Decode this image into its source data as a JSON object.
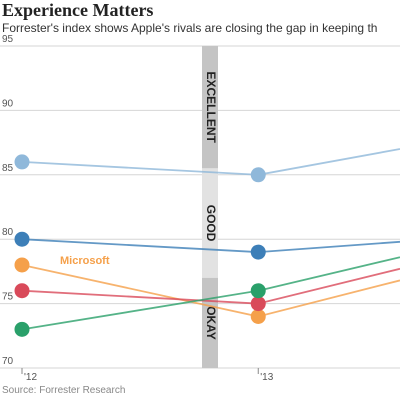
{
  "header": {
    "title": "Experience Matters",
    "subtitle": "Forrester's index shows Apple's rivals are closing the gap in keeping th"
  },
  "source": "Source: Forrester Research",
  "chart_data": {
    "type": "line",
    "title": "Experience Matters",
    "xlabel": "",
    "ylabel": "",
    "x_tick_labels": [
      "'12",
      "'13"
    ],
    "x": [
      2012,
      2013,
      2013.6
    ],
    "ylim": [
      70,
      95
    ],
    "y_ticks": [
      70,
      75,
      80,
      85,
      90,
      95
    ],
    "grid": true,
    "bands": [
      {
        "label": "EXCELLENT",
        "from": 85.5,
        "to": 95
      },
      {
        "label": "GOOD",
        "from": 77,
        "to": 85.5
      },
      {
        "label": "OKAY",
        "from": 70,
        "to": 77
      }
    ],
    "series": [
      {
        "name": "",
        "color": "#8fb8da",
        "values": [
          86,
          85,
          87
        ]
      },
      {
        "name": "",
        "color": "#3d7fb8",
        "values": [
          80,
          79,
          79.8
        ]
      },
      {
        "name": "Microsoft",
        "color": "#f5a04a",
        "values": [
          78,
          74,
          76.8
        ]
      },
      {
        "name": "",
        "color": "#d94a5a",
        "values": [
          76,
          75,
          77.7
        ]
      },
      {
        "name": "",
        "color": "#2aa06a",
        "values": [
          73,
          76,
          78.6
        ]
      }
    ]
  }
}
